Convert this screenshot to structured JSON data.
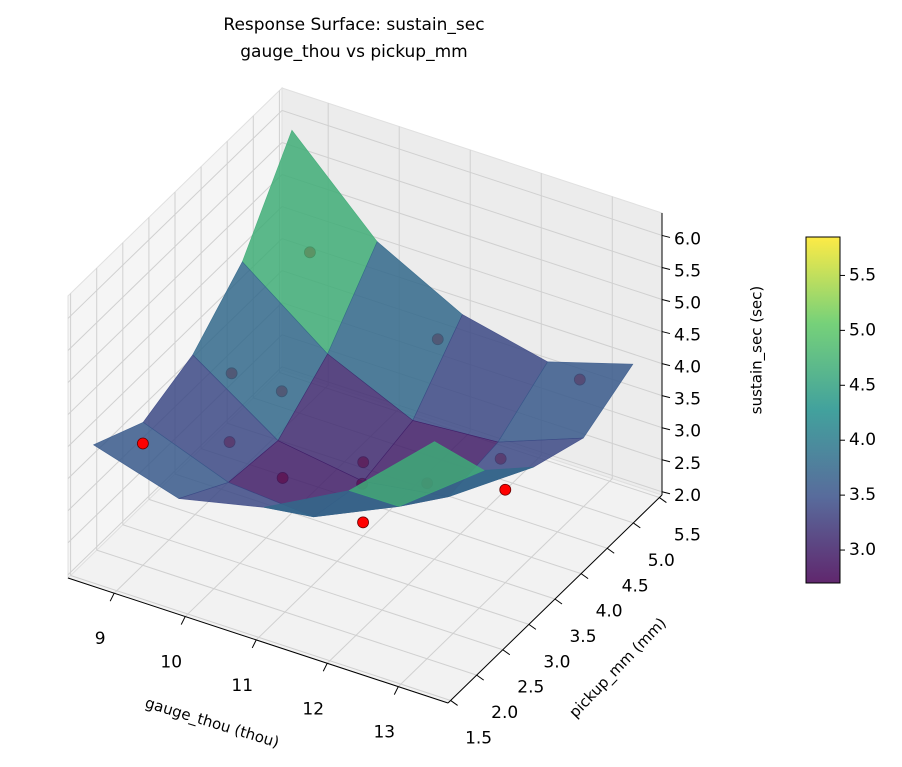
{
  "chart_data": {
    "type": "surface3d",
    "title": "Response Surface: sustain_sec",
    "subtitle": "gauge_thou vs pickup_mm",
    "xlabel": "gauge_thou (thou)",
    "ylabel": "pickup_mm (mm)",
    "zlabel": "sustain_sec (sec)",
    "xlim": [
      8.35,
      13.7
    ],
    "ylim": [
      1.45,
      5.55
    ],
    "zlim": [
      1.95,
      6.35
    ],
    "xticks": [
      9,
      10,
      11,
      12,
      13
    ],
    "yticks": [
      1.5,
      {
        "value": 2,
        "label": "2.0"
      },
      2.5,
      {
        "value": 3,
        "label": "3.0"
      },
      3.5,
      {
        "value": 4,
        "label": "4.0"
      },
      4.5,
      {
        "value": 5,
        "label": "5.0"
      },
      5.5
    ],
    "zticks": [
      {
        "value": 2,
        "label": "2.0"
      },
      2.5,
      {
        "value": 3,
        "label": "3.0"
      },
      3.5,
      {
        "value": 4,
        "label": "4.0"
      },
      4.5,
      {
        "value": 5,
        "label": "5.0"
      },
      5.5,
      {
        "value": 6,
        "label": "6.0"
      }
    ],
    "grid": true,
    "surface": {
      "x": [
        8.6,
        9.8,
        11,
        12.2,
        13.4
      ],
      "y": [
        1.6,
        2.55,
        3.5,
        4.45,
        5.4
      ],
      "z": [
        [
          4.0,
          3.6,
          3.9,
          4.6,
          5.8
        ],
        [
          3.6,
          3.1,
          3.0,
          3.6,
          4.6
        ],
        [
          3.9,
          3.0,
          2.8,
          3.0,
          3.9
        ],
        [
          4.6,
          3.6,
          3.0,
          3.1,
          3.6
        ],
        [
          5.9,
          4.6,
          3.9,
          3.6,
          4.0
        ]
      ],
      "colormap": "viridis",
      "clim": [
        2.7,
        5.85
      ],
      "alpha": 0.85,
      "colorbar_ticks": [
        {
          "value": 3,
          "label": "3.0"
        },
        3.5,
        {
          "value": 4,
          "label": "4.0"
        },
        4.5,
        {
          "value": 5,
          "label": "5.0"
        },
        5.5
      ]
    },
    "points": {
      "color": "#ff0000",
      "x": [
        9,
        10.8,
        12.8,
        9,
        10,
        10,
        12.2,
        11,
        10.6,
        11.9,
        11.5,
        13,
        12.1
      ],
      "y": [
        5.2,
        5.2,
        5.2,
        3.7,
        3.3,
        2.3,
        4.5,
        3.5,
        2.5,
        3.5,
        2.8,
        3.5,
        2
      ],
      "z": [
        4.3,
        3.6,
        3.7,
        3.6,
        4.0,
        4.0,
        2.8,
        3.1,
        3.5,
        3.1,
        3.5,
        3.4,
        3.75
      ]
    },
    "points_front": {
      "x": [
        9
      ],
      "y": [
        2
      ],
      "z": [
        3.85
      ]
    }
  }
}
